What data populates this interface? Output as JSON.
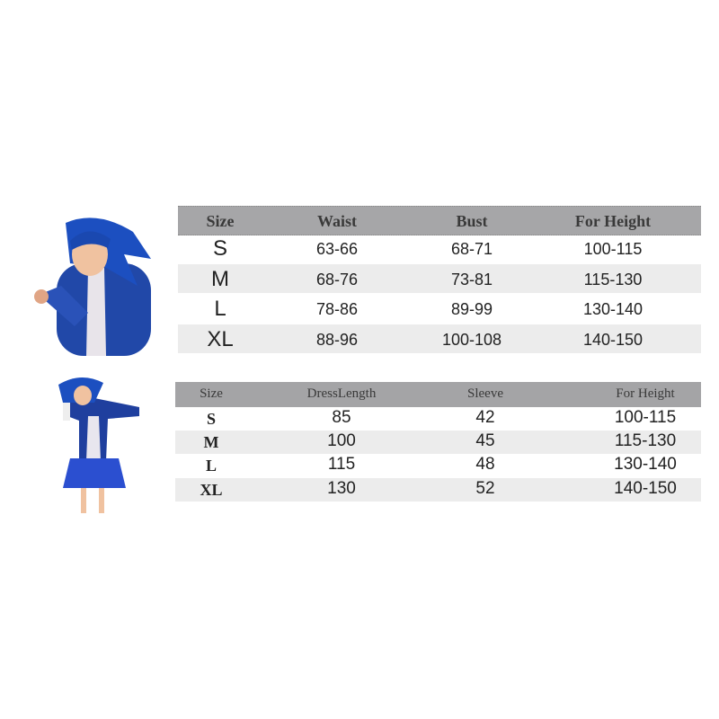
{
  "table1": {
    "headers": [
      "Size",
      "Waist",
      "Bust",
      "For Height"
    ],
    "rows": [
      [
        "S",
        "63-66",
        "68-71",
        "100-115"
      ],
      [
        "M",
        "68-76",
        "73-81",
        "115-130"
      ],
      [
        "L",
        "78-86",
        "89-99",
        "130-140"
      ],
      [
        "XL",
        "88-96",
        "100-108",
        "140-150"
      ]
    ]
  },
  "table2": {
    "headers": [
      "Size",
      "DressLength",
      "Sleeve",
      "For Height"
    ],
    "rows": [
      [
        "S",
        "85",
        "42",
        "100-115"
      ],
      [
        "M",
        "100",
        "45",
        "115-130"
      ],
      [
        "L",
        "115",
        "48",
        "130-140"
      ],
      [
        "XL",
        "130",
        "52",
        "140-150"
      ]
    ]
  },
  "colors": {
    "header": "#a6a6a8",
    "stripe": "#ececec",
    "costume": "#1f4fb5"
  }
}
